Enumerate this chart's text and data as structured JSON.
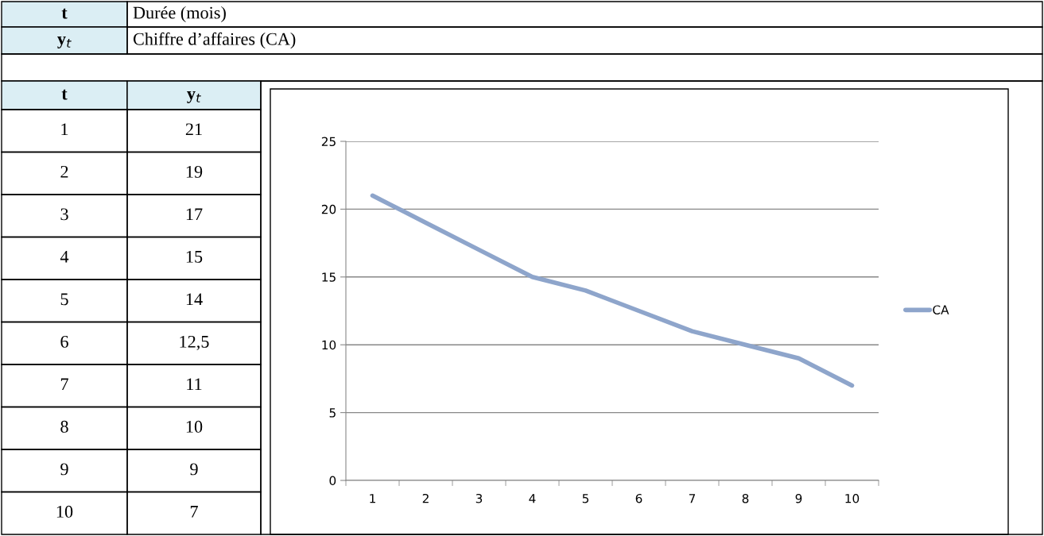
{
  "chart_data": {
    "type": "line",
    "annotations": [
      "t",
      "Durée (mois)",
      "y$_{t}$",
      "Chiffre d’affaires (CA)",
      "t",
      "y$_{t}$",
      "1",
      "21",
      "2",
      "19",
      "3",
      "17",
      "4",
      "15",
      "5",
      "14",
      "6",
      "12,5",
      "7",
      "11",
      "8",
      "10",
      "9",
      "9",
      "10",
      "7"
    ],
    "categories": [
      "1",
      "2",
      "3",
      "4",
      "5",
      "6",
      "7",
      "8",
      "9",
      "10"
    ],
    "series": [
      {
        "name": "CA",
        "color": "#8ea5cb",
        "values": [
          21,
          19,
          17,
          15,
          14,
          12.5,
          11,
          10,
          9,
          7
        ]
      }
    ],
    "ylim": [
      0,
      25
    ],
    "yticks": [
      0,
      5,
      10,
      15,
      20,
      25
    ],
    "grid": "y",
    "legend": "right",
    "marker": "none",
    "line_style": "solid"
  }
}
